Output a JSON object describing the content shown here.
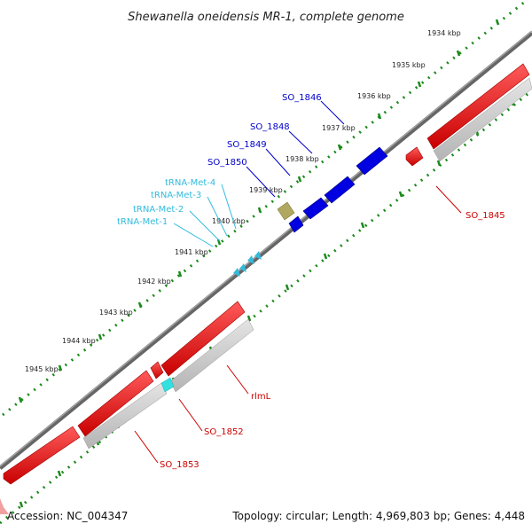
{
  "title": "Shewanella oneidensis MR-1, complete genome",
  "footer": {
    "accession": "Accession: NC_004347",
    "topology": "Topology: circular; Length: 4,969,803 bp; Genes: 4,448"
  },
  "ticks": [
    "1934 kbp",
    "1935 kbp",
    "1936 kbp",
    "1937 kbp",
    "1938 kbp",
    "1939 kbp",
    "1940 kbp",
    "1941 kbp",
    "1942 kbp",
    "1943 kbp",
    "1944 kbp",
    "1945 kbp"
  ],
  "labels": {
    "so1846": "SO_1846",
    "so1848": "SO_1848",
    "so1849": "SO_1849",
    "so1850": "SO_1850",
    "trna4": "tRNA-Met-4",
    "trna3": "tRNA-Met-3",
    "trna2": "tRNA-Met-2",
    "trna1": "tRNA-Met-1",
    "so1845": "SO_1845",
    "rlml": "rlmL",
    "so1852": "SO_1852",
    "so1853": "SO_1853"
  },
  "colors": {
    "forward_cds": "#0000e0",
    "reverse_cds": "#e00000",
    "trna": "#33bbdd",
    "label_blue": "#0000cc",
    "label_cyan": "#33bbdd",
    "label_red": "#cc0000",
    "backbone": "#777777",
    "tick": "#1a8a1a"
  }
}
